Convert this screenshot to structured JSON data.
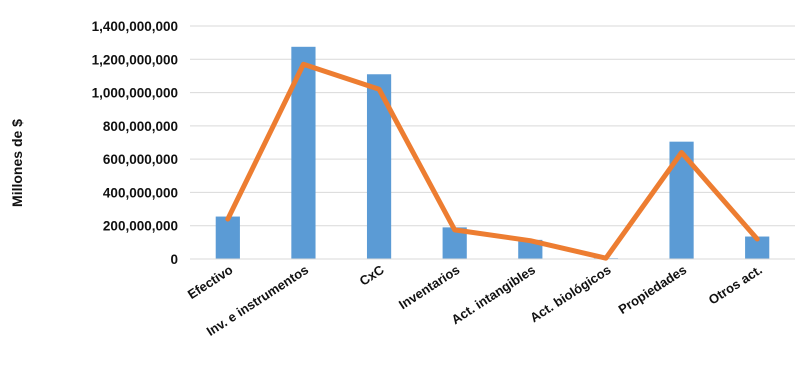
{
  "chart_data": {
    "type": "bar",
    "title": "",
    "xlabel": "",
    "ylabel": "Millones de $",
    "ylim": [
      0,
      1400000000
    ],
    "y_ticks": [
      "1,400,000,000",
      "1,200,000,000",
      "1,000,000,000",
      "800,000,000",
      "600,000,000",
      "400,000,000",
      "200,000,000",
      "0"
    ],
    "y_tick_values": [
      1400000000,
      1200000000,
      1000000000,
      800000000,
      600000000,
      400000000,
      200000000,
      0
    ],
    "grid": true,
    "categories": [
      "Efectivo",
      "Inv. e instrumentos",
      "CxC",
      "Inventarios",
      "Act. intangibles",
      "Act. biológicos",
      "Propiedades",
      "Otros act."
    ],
    "series": [
      {
        "type": "bar",
        "color": "#5b9bd5",
        "values": [
          255000000,
          1275000000,
          1110000000,
          190000000,
          115000000,
          5000000,
          705000000,
          135000000
        ]
      },
      {
        "type": "line",
        "color": "#ed7d31",
        "values": [
          240000000,
          1170000000,
          1020000000,
          175000000,
          110000000,
          5000000,
          640000000,
          120000000
        ]
      }
    ]
  }
}
